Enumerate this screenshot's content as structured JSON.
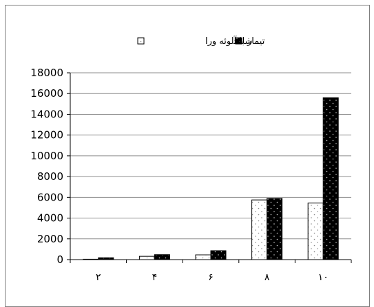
{
  "chart_data": {
    "type": "bar",
    "categories": [
      "٢",
      "۴",
      "۶",
      "٨",
      "١٠"
    ],
    "series": [
      {
        "name": "تیمار با آلوئه ورا",
        "pattern": "dotted-white",
        "values": [
          40,
          320,
          460,
          5750,
          5450
        ]
      },
      {
        "name": "شاهد",
        "pattern": "dotted-black",
        "values": [
          180,
          480,
          860,
          5900,
          15600
        ]
      }
    ],
    "ylim": [
      0,
      18000
    ],
    "yticks": [
      0,
      2000,
      4000,
      6000,
      8000,
      10000,
      12000,
      14000,
      16000,
      18000
    ],
    "grid": true,
    "legend_position": "top",
    "colors": {
      "series1_fill": "#ffffff",
      "series2_fill": "#000000",
      "dots": "#9a9a9a",
      "grid": "#8c8c8c"
    }
  }
}
